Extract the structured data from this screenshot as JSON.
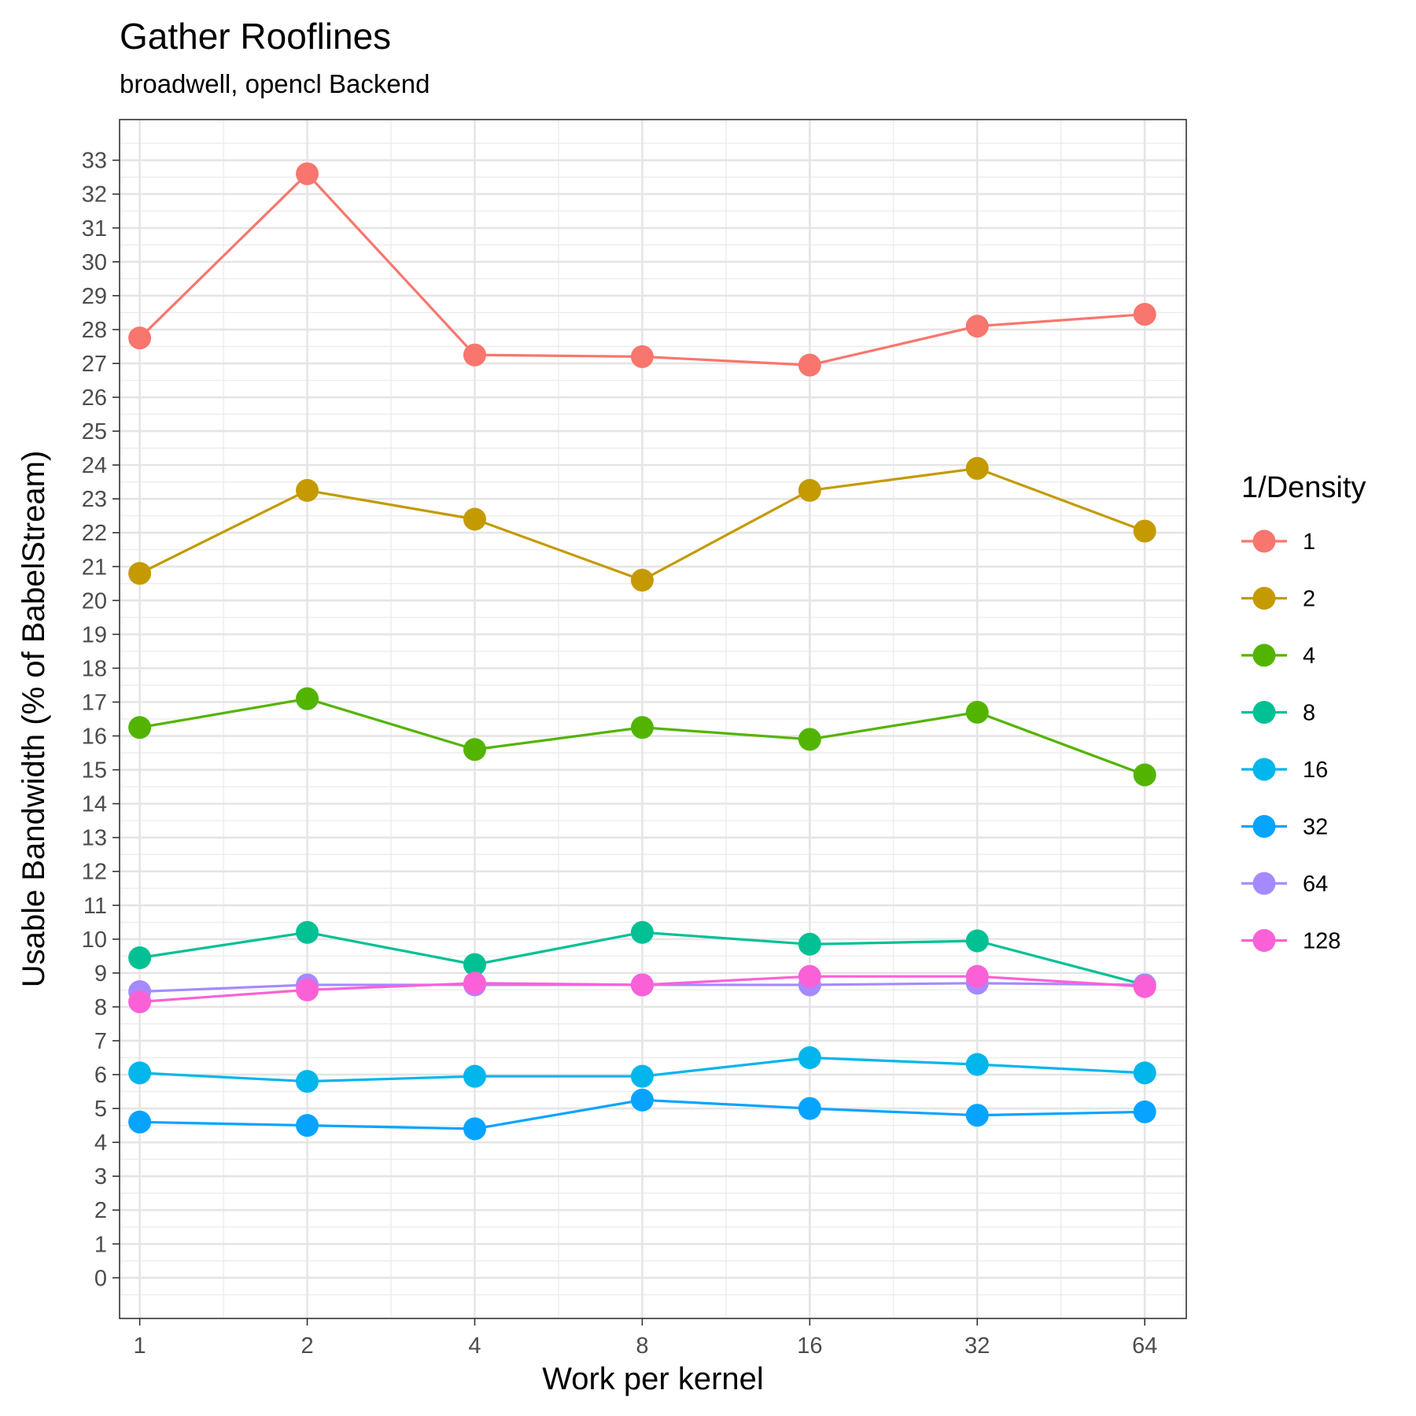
{
  "chart_data": {
    "type": "line",
    "title": "Gather Rooflines",
    "subtitle": "broadwell, opencl Backend",
    "xlabel": "Work per kernel",
    "ylabel": "Usable Bandwidth (% of BabelStream)",
    "x_scale": "log2",
    "x": [
      1,
      2,
      4,
      8,
      16,
      32,
      64
    ],
    "x_tick_labels": [
      "1",
      "2",
      "4",
      "8",
      "16",
      "32",
      "64"
    ],
    "xlim": [
      0.92,
      76
    ],
    "ylim": [
      -1.2,
      34.2
    ],
    "y_ticks": [
      0,
      1,
      2,
      3,
      4,
      5,
      6,
      7,
      8,
      9,
      10,
      11,
      12,
      13,
      14,
      15,
      16,
      17,
      18,
      19,
      20,
      21,
      22,
      23,
      24,
      25,
      26,
      27,
      28,
      29,
      30,
      31,
      32,
      33
    ],
    "y_tick_labels": [
      "0",
      "1",
      "2",
      "3",
      "4",
      "5",
      "6",
      "7",
      "8",
      "9",
      "10",
      "11",
      "12",
      "13",
      "14",
      "15",
      "16",
      "17",
      "18",
      "19",
      "20",
      "21",
      "22",
      "23",
      "24",
      "25",
      "26",
      "27",
      "28",
      "29",
      "30",
      "31",
      "32",
      "33"
    ],
    "grid": true,
    "legend": {
      "title": "1/Density",
      "position": "right"
    },
    "series": [
      {
        "name": "1",
        "color": "#F8766D",
        "values": [
          27.75,
          32.6,
          27.25,
          27.2,
          26.95,
          28.1,
          28.45
        ]
      },
      {
        "name": "2",
        "color": "#C49A00",
        "values": [
          20.8,
          23.25,
          22.4,
          20.6,
          23.25,
          23.9,
          22.05
        ]
      },
      {
        "name": "4",
        "color": "#53B400",
        "values": [
          16.25,
          17.1,
          15.6,
          16.25,
          15.9,
          16.7,
          14.85
        ]
      },
      {
        "name": "8",
        "color": "#00C094",
        "values": [
          9.45,
          10.2,
          9.25,
          10.2,
          9.85,
          9.95,
          8.65
        ]
      },
      {
        "name": "16",
        "color": "#00B6EB",
        "values": [
          6.05,
          5.8,
          5.95,
          5.95,
          6.5,
          6.3,
          6.05
        ]
      },
      {
        "name": "32",
        "color": "#06A4FF",
        "values": [
          4.6,
          4.5,
          4.4,
          5.25,
          5.0,
          4.8,
          4.9
        ]
      },
      {
        "name": "64",
        "color": "#A58AFF",
        "values": [
          8.45,
          8.65,
          8.65,
          8.65,
          8.65,
          8.7,
          8.65
        ]
      },
      {
        "name": "128",
        "color": "#FB61D7",
        "values": [
          8.15,
          8.5,
          8.7,
          8.65,
          8.9,
          8.9,
          8.6
        ]
      }
    ]
  }
}
